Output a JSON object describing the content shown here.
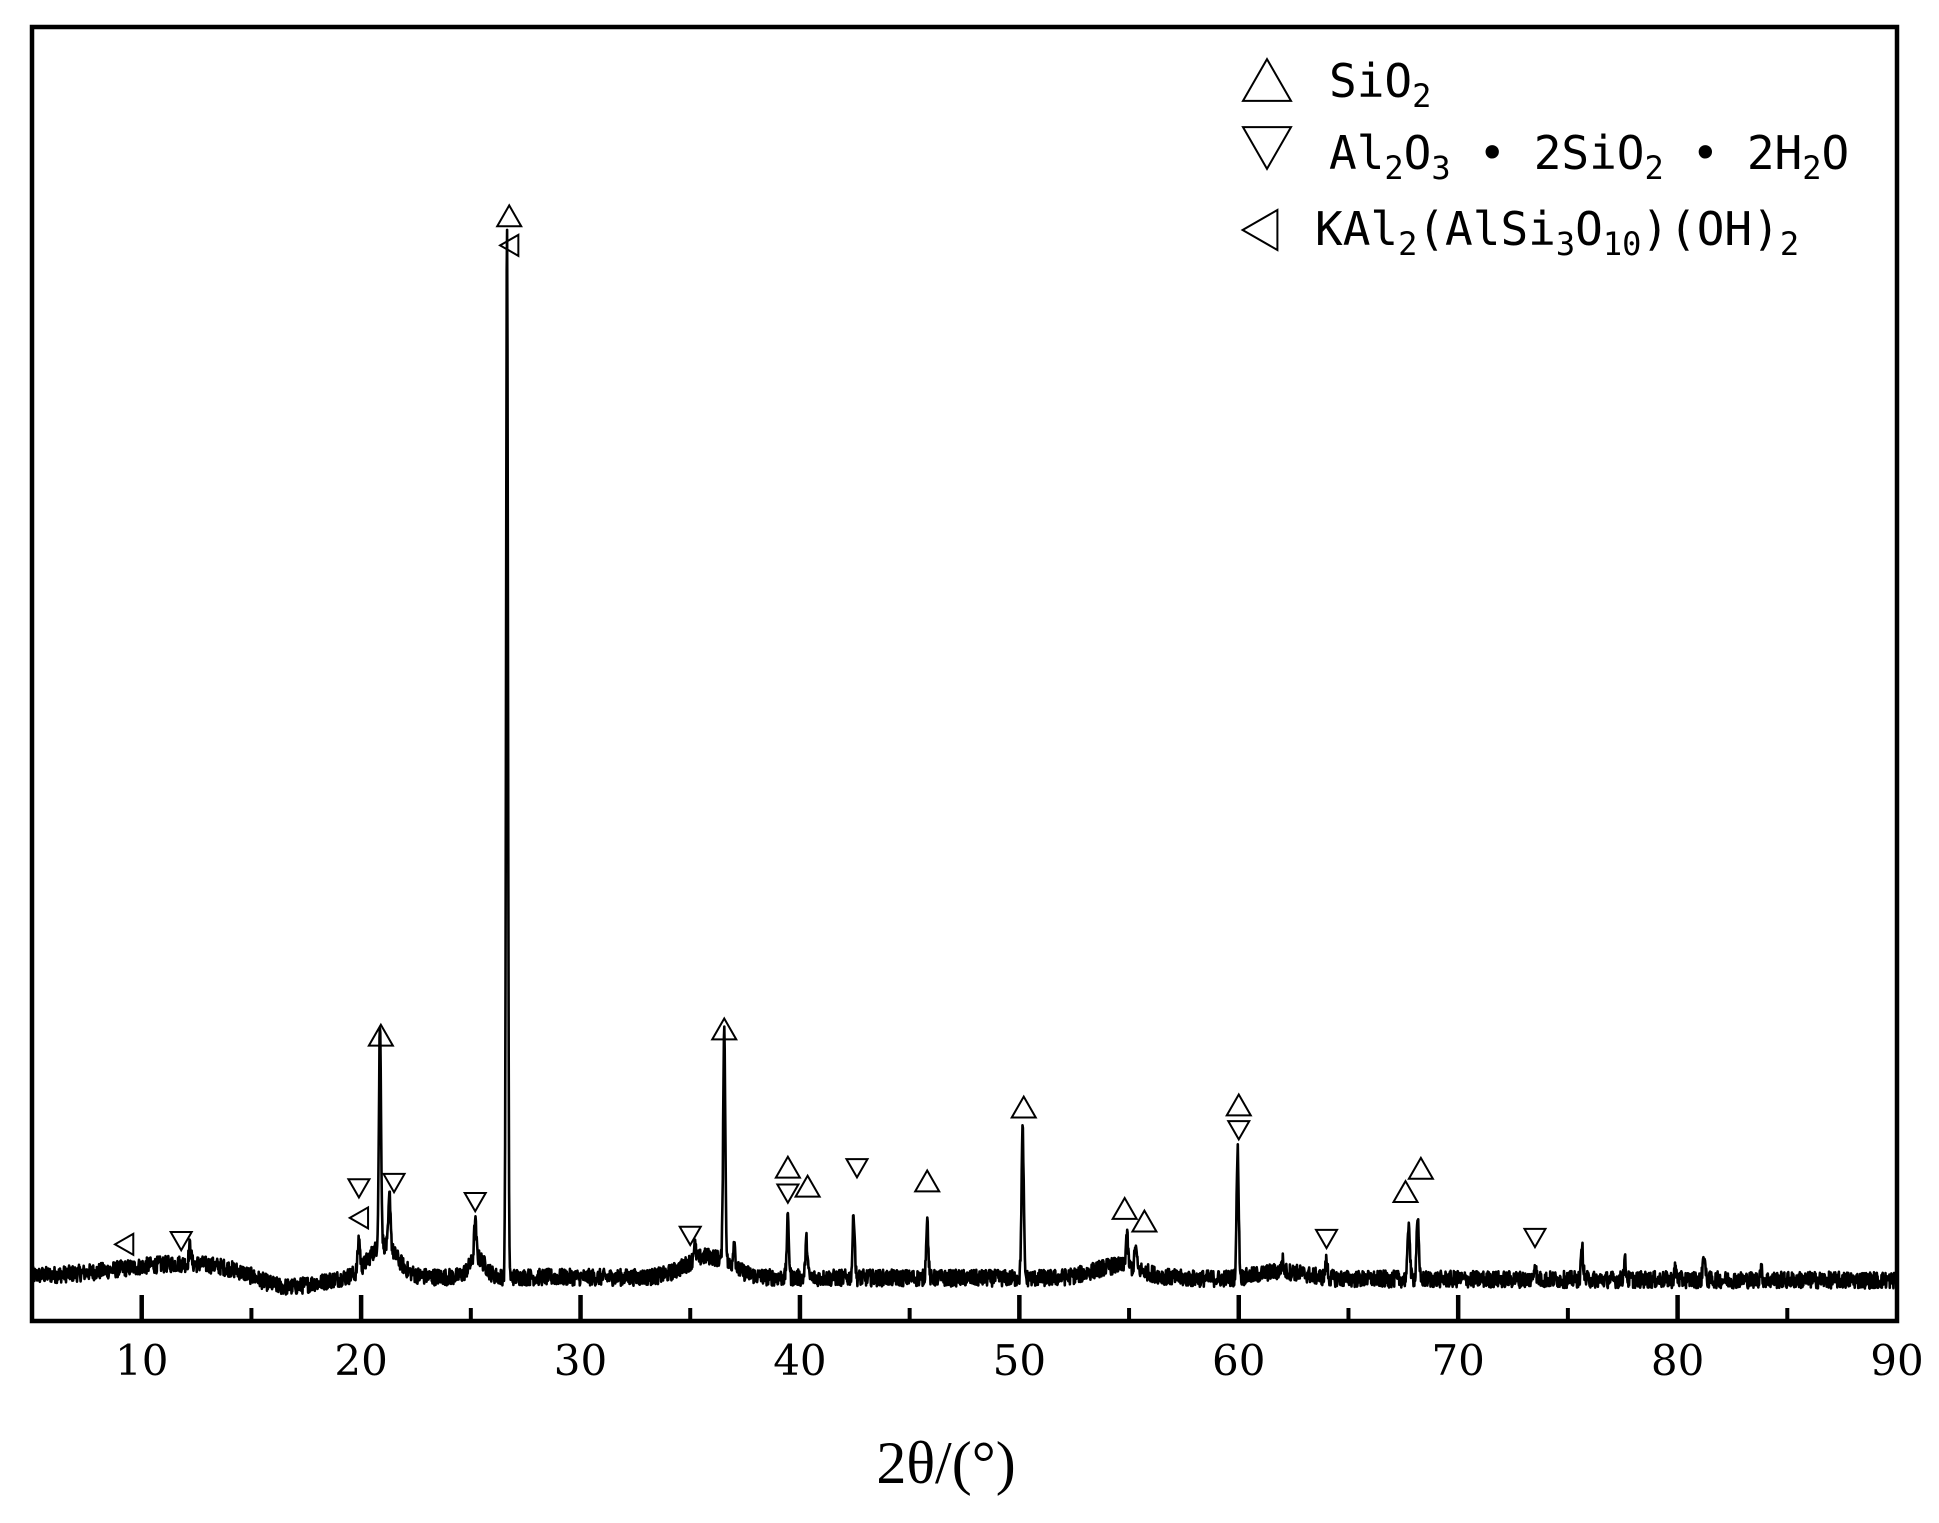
{
  "chart_data": {
    "type": "line",
    "title": "",
    "xlabel": "2θ/(°)",
    "ylabel": "",
    "xlim": [
      5,
      90
    ],
    "ylim": [
      0,
      1
    ],
    "x_ticks_major": [
      10,
      20,
      30,
      40,
      50,
      60,
      70,
      80,
      90
    ],
    "x_tick_labels": [
      "10",
      "20",
      "30",
      "40",
      "50",
      "60",
      "70",
      "80",
      "90"
    ],
    "x_ticks_minor": [
      15,
      25,
      35,
      45,
      55,
      65,
      75,
      85
    ],
    "grid": false,
    "legend_position": "top-right",
    "line_color": "#000000",
    "legend": [
      {
        "marker": "up-triangle",
        "label": "SiO2",
        "label_parts": [
          [
            "SiO",
            ""
          ],
          [
            "2",
            "sub"
          ]
        ]
      },
      {
        "marker": "down-triangle",
        "label": "Al2O3·2SiO2·2H2O",
        "label_parts": [
          [
            "Al",
            ""
          ],
          [
            "2",
            "sub"
          ],
          [
            "O",
            ""
          ],
          [
            "3",
            "sub"
          ],
          [
            " • 2SiO",
            ""
          ],
          [
            "2",
            "sub"
          ],
          [
            " • 2H",
            ""
          ],
          [
            "2",
            "sub"
          ],
          [
            "O",
            ""
          ]
        ]
      },
      {
        "marker": "left-triangle",
        "label": "KAl2(AlSi3O10)(OH)2",
        "label_parts": [
          [
            "KAl",
            ""
          ],
          [
            "2",
            "sub"
          ],
          [
            "(AlSi",
            ""
          ],
          [
            "3",
            "sub"
          ],
          [
            "O",
            ""
          ],
          [
            "10",
            "sub"
          ],
          [
            ")(OH)",
            ""
          ],
          [
            "2",
            "sub"
          ]
        ]
      }
    ],
    "peaks": [
      {
        "x": 12.2,
        "y": 0.017
      },
      {
        "x": 19.9,
        "y": 0.03
      },
      {
        "x": 20.86,
        "y": 0.21
      },
      {
        "x": 21.3,
        "y": 0.05
      },
      {
        "x": 25.2,
        "y": 0.035
      },
      {
        "x": 26.65,
        "y": 1.0
      },
      {
        "x": 35.2,
        "y": 0.015
      },
      {
        "x": 36.55,
        "y": 0.22
      },
      {
        "x": 37.0,
        "y": 0.025
      },
      {
        "x": 39.45,
        "y": 0.055
      },
      {
        "x": 40.3,
        "y": 0.035
      },
      {
        "x": 42.45,
        "y": 0.06
      },
      {
        "x": 45.8,
        "y": 0.055
      },
      {
        "x": 50.15,
        "y": 0.14
      },
      {
        "x": 54.9,
        "y": 0.03
      },
      {
        "x": 55.3,
        "y": 0.02
      },
      {
        "x": 59.95,
        "y": 0.12
      },
      {
        "x": 62.0,
        "y": 0.01
      },
      {
        "x": 64.0,
        "y": 0.015
      },
      {
        "x": 67.75,
        "y": 0.055
      },
      {
        "x": 68.15,
        "y": 0.06
      },
      {
        "x": 73.5,
        "y": 0.015
      },
      {
        "x": 75.65,
        "y": 0.03
      },
      {
        "x": 77.6,
        "y": 0.017
      },
      {
        "x": 79.9,
        "y": 0.01
      },
      {
        "x": 81.2,
        "y": 0.025
      },
      {
        "x": 83.8,
        "y": 0.01
      }
    ],
    "annotations": [
      {
        "x": 9.2,
        "y": 0.03,
        "marker": "left-triangle",
        "size": "small"
      },
      {
        "x": 11.8,
        "y": 0.033,
        "marker": "down-triangle",
        "size": "small"
      },
      {
        "x": 19.9,
        "y": 0.055,
        "marker": "left-triangle",
        "size": "small"
      },
      {
        "x": 19.9,
        "y": 0.083,
        "marker": "down-triangle",
        "size": "small"
      },
      {
        "x": 21.5,
        "y": 0.088,
        "marker": "down-triangle",
        "size": "small"
      },
      {
        "x": 20.9,
        "y": 0.228,
        "marker": "up-triangle",
        "size": "large"
      },
      {
        "x": 25.2,
        "y": 0.07,
        "marker": "down-triangle",
        "size": "small"
      },
      {
        "x": 26.75,
        "y": 0.976,
        "marker": "left-triangle",
        "size": "small"
      },
      {
        "x": 26.75,
        "y": 1.004,
        "marker": "up-triangle",
        "size": "large"
      },
      {
        "x": 35.0,
        "y": 0.038,
        "marker": "down-triangle",
        "size": "small"
      },
      {
        "x": 36.55,
        "y": 0.234,
        "marker": "up-triangle",
        "size": "large"
      },
      {
        "x": 39.45,
        "y": 0.103,
        "marker": "up-triangle",
        "size": "large"
      },
      {
        "x": 39.45,
        "y": 0.078,
        "marker": "down-triangle",
        "size": "small"
      },
      {
        "x": 40.35,
        "y": 0.085,
        "marker": "up-triangle",
        "size": "large"
      },
      {
        "x": 42.6,
        "y": 0.102,
        "marker": "down-triangle",
        "size": "small"
      },
      {
        "x": 45.8,
        "y": 0.09,
        "marker": "up-triangle",
        "size": "large"
      },
      {
        "x": 50.2,
        "y": 0.16,
        "marker": "up-triangle",
        "size": "large"
      },
      {
        "x": 54.8,
        "y": 0.064,
        "marker": "up-triangle",
        "size": "large"
      },
      {
        "x": 55.7,
        "y": 0.052,
        "marker": "up-triangle",
        "size": "large"
      },
      {
        "x": 60.0,
        "y": 0.162,
        "marker": "up-triangle",
        "size": "large"
      },
      {
        "x": 60.0,
        "y": 0.138,
        "marker": "down-triangle",
        "size": "small"
      },
      {
        "x": 64.0,
        "y": 0.035,
        "marker": "down-triangle",
        "size": "small"
      },
      {
        "x": 67.6,
        "y": 0.08,
        "marker": "up-triangle",
        "size": "large"
      },
      {
        "x": 68.3,
        "y": 0.102,
        "marker": "up-triangle",
        "size": "large"
      },
      {
        "x": 73.5,
        "y": 0.036,
        "marker": "down-triangle",
        "size": "small"
      }
    ]
  }
}
